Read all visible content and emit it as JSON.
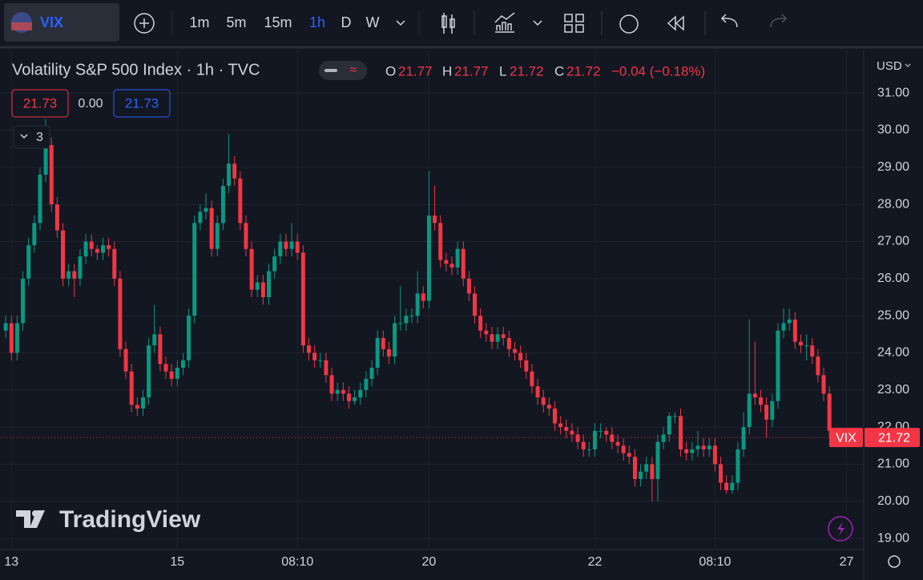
{
  "toolbar": {
    "symbol": "VIX",
    "intervals": [
      "1m",
      "5m",
      "15m",
      "1h",
      "D",
      "W"
    ]
  },
  "legend": {
    "title": "Volatility S&P 500 Index · 1h · TVC",
    "o_key": "O",
    "open": "21.77",
    "h_key": "H",
    "high": "21.77",
    "l_key": "L",
    "low": "21.72",
    "c_key": "C",
    "close": "21.72",
    "change": "−0.04 (−0.18%)",
    "bid": "21.73",
    "spread": "0.00",
    "ask": "21.73",
    "indicators": "3"
  },
  "currency": "USD",
  "brand": "TradingView",
  "chart_data": {
    "type": "candlestick",
    "up_color": "#089981",
    "down_color": "#f23645",
    "grid": true,
    "symbol_tag": "VIX",
    "last_price_label": "21.72",
    "ylim": [
      18.7,
      32.17
    ],
    "yticks": [
      {
        "value": 19,
        "label": "19.00"
      },
      {
        "value": 20,
        "label": "20.00"
      },
      {
        "value": 21,
        "label": "21.00"
      },
      {
        "value": 22,
        "label": "22.00"
      },
      {
        "value": 23,
        "label": "23.00"
      },
      {
        "value": 24,
        "label": "24.00"
      },
      {
        "value": 25,
        "label": "25.00"
      },
      {
        "value": 26,
        "label": "26.00"
      },
      {
        "value": 27,
        "label": "27.00"
      },
      {
        "value": 28,
        "label": "28.00"
      },
      {
        "value": 29,
        "label": "29.00"
      },
      {
        "value": 30,
        "label": "30.00"
      },
      {
        "value": 31,
        "label": "31.00"
      }
    ],
    "xlim": [
      -1,
      150
    ],
    "xticks": [
      {
        "value": 1,
        "label": "13"
      },
      {
        "value": 30,
        "label": "15"
      },
      {
        "value": 51,
        "label": "08:10"
      },
      {
        "value": 74,
        "label": "20"
      },
      {
        "value": 103,
        "label": "22"
      },
      {
        "value": 124,
        "label": "08:10"
      },
      {
        "value": 147,
        "label": "27"
      }
    ],
    "candles": [
      [
        24.6,
        25.0,
        24.4,
        24.8
      ],
      [
        24.8,
        25.0,
        23.8,
        24.0
      ],
      [
        24.0,
        25.0,
        23.8,
        24.8
      ],
      [
        24.8,
        26.2,
        24.6,
        26.0
      ],
      [
        26.0,
        27.1,
        25.8,
        26.9
      ],
      [
        26.9,
        27.7,
        26.7,
        27.5
      ],
      [
        27.5,
        29.0,
        27.3,
        28.8
      ],
      [
        28.8,
        30.3,
        28.6,
        29.6
      ],
      [
        29.6,
        29.8,
        27.8,
        28.0
      ],
      [
        28.0,
        28.2,
        27.1,
        27.3
      ],
      [
        27.3,
        27.5,
        25.8,
        26.0
      ],
      [
        26.0,
        26.4,
        25.8,
        26.2
      ],
      [
        26.2,
        26.4,
        25.5,
        26.0
      ],
      [
        26.0,
        26.8,
        25.8,
        26.6
      ],
      [
        26.6,
        27.2,
        26.4,
        27.0
      ],
      [
        27.0,
        27.2,
        26.6,
        26.8
      ],
      [
        26.8,
        26.9,
        26.5,
        26.7
      ],
      [
        26.7,
        27.1,
        26.5,
        26.9
      ],
      [
        26.9,
        27.1,
        26.6,
        26.8
      ],
      [
        26.8,
        27.0,
        25.8,
        26.0
      ],
      [
        26.0,
        26.2,
        23.9,
        24.1
      ],
      [
        24.1,
        24.3,
        23.3,
        23.5
      ],
      [
        23.5,
        23.7,
        22.4,
        22.6
      ],
      [
        22.6,
        22.8,
        22.3,
        22.5
      ],
      [
        22.5,
        23.0,
        22.3,
        22.8
      ],
      [
        22.8,
        24.4,
        22.6,
        24.2
      ],
      [
        24.2,
        25.3,
        24.0,
        24.5
      ],
      [
        24.5,
        24.7,
        23.5,
        23.7
      ],
      [
        23.7,
        23.9,
        23.3,
        23.5
      ],
      [
        23.5,
        23.7,
        23.1,
        23.3
      ],
      [
        23.3,
        23.8,
        23.1,
        23.6
      ],
      [
        23.6,
        24.0,
        23.4,
        23.8
      ],
      [
        23.8,
        25.2,
        23.6,
        25.0
      ],
      [
        25.0,
        27.7,
        24.8,
        27.5
      ],
      [
        27.5,
        28.0,
        27.3,
        27.8
      ],
      [
        27.8,
        28.3,
        27.6,
        27.9
      ],
      [
        27.9,
        28.1,
        26.6,
        26.8
      ],
      [
        26.8,
        27.7,
        26.6,
        27.5
      ],
      [
        27.5,
        28.7,
        27.3,
        28.5
      ],
      [
        28.5,
        29.9,
        28.3,
        29.1
      ],
      [
        29.1,
        29.3,
        28.5,
        28.7
      ],
      [
        28.7,
        28.9,
        27.3,
        27.5
      ],
      [
        27.5,
        27.7,
        26.6,
        26.8
      ],
      [
        26.8,
        27.0,
        25.5,
        25.7
      ],
      [
        25.7,
        26.1,
        25.5,
        25.9
      ],
      [
        25.9,
        26.1,
        25.3,
        25.5
      ],
      [
        25.5,
        26.4,
        25.3,
        26.2
      ],
      [
        26.2,
        26.8,
        26.0,
        26.6
      ],
      [
        26.6,
        27.2,
        26.4,
        27.0
      ],
      [
        27.0,
        27.2,
        26.6,
        26.8
      ],
      [
        26.8,
        27.5,
        26.6,
        27.0
      ],
      [
        27.0,
        27.2,
        26.5,
        26.7
      ],
      [
        26.7,
        26.9,
        24.0,
        24.2
      ],
      [
        24.2,
        24.4,
        23.8,
        24.0
      ],
      [
        24.0,
        24.2,
        23.6,
        23.8
      ],
      [
        23.8,
        24.0,
        23.6,
        23.8
      ],
      [
        23.8,
        24.0,
        23.2,
        23.4
      ],
      [
        23.4,
        23.6,
        22.7,
        22.9
      ],
      [
        22.9,
        23.2,
        22.7,
        23.0
      ],
      [
        23.0,
        23.2,
        22.7,
        22.9
      ],
      [
        22.9,
        23.1,
        22.5,
        22.7
      ],
      [
        22.7,
        23.0,
        22.6,
        22.8
      ],
      [
        22.8,
        23.2,
        22.6,
        23.0
      ],
      [
        23.0,
        23.5,
        22.8,
        23.3
      ],
      [
        23.3,
        23.8,
        23.1,
        23.6
      ],
      [
        23.6,
        24.6,
        23.4,
        24.4
      ],
      [
        24.4,
        24.6,
        23.9,
        24.1
      ],
      [
        24.1,
        24.3,
        23.7,
        23.9
      ],
      [
        23.9,
        25.0,
        23.7,
        24.8
      ],
      [
        24.8,
        25.8,
        24.6,
        24.8
      ],
      [
        24.8,
        25.2,
        24.6,
        25.0
      ],
      [
        25.0,
        25.2,
        24.8,
        25.0
      ],
      [
        25.0,
        26.2,
        24.8,
        25.6
      ],
      [
        25.6,
        25.8,
        25.2,
        25.4
      ],
      [
        25.4,
        28.9,
        25.2,
        27.7
      ],
      [
        27.7,
        28.5,
        27.3,
        27.5
      ],
      [
        27.5,
        27.7,
        26.3,
        26.5
      ],
      [
        26.5,
        26.7,
        26.2,
        26.4
      ],
      [
        26.4,
        26.6,
        26.1,
        26.3
      ],
      [
        26.3,
        27.0,
        26.1,
        26.8
      ],
      [
        26.8,
        27.0,
        25.8,
        26.0
      ],
      [
        26.0,
        26.2,
        25.4,
        25.6
      ],
      [
        25.6,
        25.8,
        24.8,
        25.0
      ],
      [
        25.0,
        25.2,
        24.4,
        24.6
      ],
      [
        24.6,
        24.8,
        24.3,
        24.5
      ],
      [
        24.5,
        24.7,
        24.1,
        24.3
      ],
      [
        24.3,
        24.7,
        24.1,
        24.5
      ],
      [
        24.5,
        24.7,
        24.2,
        24.4
      ],
      [
        24.4,
        24.6,
        23.9,
        24.1
      ],
      [
        24.1,
        24.3,
        23.8,
        24.0
      ],
      [
        24.0,
        24.2,
        23.6,
        23.8
      ],
      [
        23.8,
        24.0,
        23.3,
        23.5
      ],
      [
        23.5,
        23.7,
        22.9,
        23.1
      ],
      [
        23.1,
        23.3,
        22.6,
        22.8
      ],
      [
        22.8,
        23.0,
        22.4,
        22.6
      ],
      [
        22.6,
        22.8,
        22.3,
        22.5
      ],
      [
        22.5,
        22.7,
        21.9,
        22.1
      ],
      [
        22.1,
        22.3,
        21.8,
        22.0
      ],
      [
        22.0,
        22.2,
        21.7,
        21.9
      ],
      [
        21.9,
        22.1,
        21.6,
        21.8
      ],
      [
        21.8,
        22.0,
        21.4,
        21.6
      ],
      [
        21.6,
        21.8,
        21.2,
        21.4
      ],
      [
        21.4,
        21.6,
        21.2,
        21.4
      ],
      [
        21.4,
        22.1,
        21.2,
        21.9
      ],
      [
        21.9,
        22.1,
        21.7,
        21.9
      ],
      [
        21.9,
        22.0,
        21.6,
        21.8
      ],
      [
        21.8,
        22.0,
        21.4,
        21.6
      ],
      [
        21.6,
        21.8,
        21.3,
        21.5
      ],
      [
        21.5,
        21.7,
        21.1,
        21.3
      ],
      [
        21.3,
        21.5,
        21.0,
        21.2
      ],
      [
        21.2,
        21.4,
        20.4,
        20.6
      ],
      [
        20.6,
        21.0,
        20.4,
        20.8
      ],
      [
        20.8,
        21.2,
        20.6,
        21.0
      ],
      [
        21.0,
        21.2,
        20.0,
        20.6
      ],
      [
        20.6,
        21.8,
        20.0,
        21.6
      ],
      [
        21.6,
        22.0,
        21.4,
        21.8
      ],
      [
        21.8,
        22.4,
        21.6,
        22.3
      ],
      [
        22.3,
        22.4,
        22.1,
        22.3
      ],
      [
        22.3,
        22.5,
        21.2,
        21.4
      ],
      [
        21.4,
        21.6,
        21.1,
        21.3
      ],
      [
        21.3,
        21.6,
        21.1,
        21.4
      ],
      [
        21.4,
        21.9,
        21.2,
        21.5
      ],
      [
        21.5,
        21.7,
        21.2,
        21.4
      ],
      [
        21.4,
        21.7,
        21.2,
        21.5
      ],
      [
        21.5,
        21.7,
        20.8,
        21.0
      ],
      [
        21.0,
        21.2,
        20.3,
        20.5
      ],
      [
        20.5,
        20.7,
        20.2,
        20.3
      ],
      [
        20.3,
        20.7,
        20.2,
        20.5
      ],
      [
        20.5,
        21.6,
        20.3,
        21.4
      ],
      [
        21.4,
        22.4,
        21.2,
        22.0
      ],
      [
        22.0,
        24.9,
        21.8,
        22.9
      ],
      [
        22.9,
        24.3,
        22.6,
        22.8
      ],
      [
        22.8,
        23.0,
        22.4,
        22.6
      ],
      [
        22.6,
        22.8,
        21.7,
        22.2
      ],
      [
        22.2,
        22.9,
        22.0,
        22.7
      ],
      [
        22.7,
        24.8,
        22.5,
        24.6
      ],
      [
        24.6,
        25.2,
        24.4,
        24.8
      ],
      [
        24.8,
        25.2,
        24.6,
        24.9
      ],
      [
        24.9,
        25.1,
        24.1,
        24.3
      ],
      [
        24.3,
        24.5,
        24.0,
        24.2
      ],
      [
        24.2,
        24.5,
        23.8,
        24.2
      ],
      [
        24.2,
        24.4,
        23.7,
        23.9
      ],
      [
        23.9,
        24.1,
        23.2,
        23.4
      ],
      [
        23.4,
        23.6,
        22.7,
        22.9
      ],
      [
        22.9,
        23.1,
        21.7,
        21.9
      ],
      [
        21.77,
        21.77,
        21.72,
        21.72
      ]
    ]
  }
}
